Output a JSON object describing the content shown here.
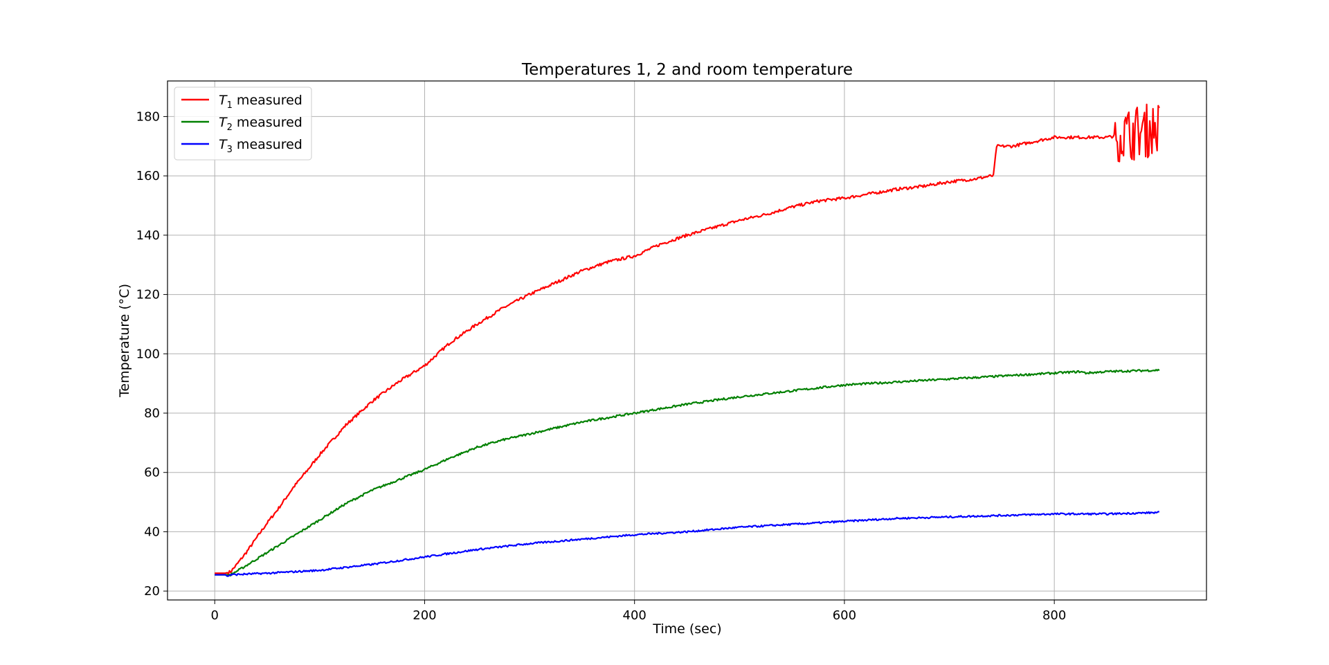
{
  "chart_data": {
    "type": "line",
    "title": "Temperatures 1, 2 and room temperature",
    "xlabel": "Time (sec)",
    "ylabel": "Temperature (°C)",
    "xlim": [
      -45,
      945
    ],
    "ylim": [
      17,
      192
    ],
    "xticks": [
      0,
      200,
      400,
      600,
      800
    ],
    "yticks": [
      20,
      40,
      60,
      80,
      100,
      120,
      140,
      160,
      180
    ],
    "grid": true,
    "legend_position": "top-left",
    "series": [
      {
        "name": "T1 measured",
        "legend_symbol": "T",
        "legend_sub": "1",
        "legend_rest": " measured",
        "color": "#ff0000",
        "noise": 0.5,
        "burst_start": 858,
        "burst_amp": 9,
        "x": [
          0,
          10,
          15,
          20,
          30,
          40,
          50,
          60,
          75,
          90,
          100,
          125,
          150,
          175,
          200,
          225,
          250,
          275,
          300,
          325,
          350,
          375,
          400,
          425,
          450,
          475,
          500,
          525,
          550,
          575,
          600,
          625,
          650,
          675,
          700,
          725,
          740,
          742,
          745,
          760,
          800,
          850,
          900
        ],
        "y": [
          26,
          26,
          26.5,
          28.5,
          33,
          38,
          43,
          47.5,
          55,
          61.5,
          66,
          76,
          84,
          90.5,
          96,
          104,
          110,
          115.5,
          120,
          124,
          128,
          131,
          133,
          137,
          140,
          142.5,
          145,
          147,
          149.5,
          151.5,
          152.5,
          154,
          155.5,
          156.5,
          158,
          159,
          160,
          160,
          170,
          170,
          173,
          173,
          176
        ]
      },
      {
        "name": "T2 measured",
        "legend_symbol": "T",
        "legend_sub": "2",
        "legend_rest": " measured",
        "color": "#008000",
        "noise": 0.35,
        "x": [
          0,
          10,
          15,
          25,
          50,
          75,
          100,
          125,
          150,
          175,
          200,
          225,
          250,
          275,
          300,
          325,
          350,
          375,
          400,
          450,
          500,
          550,
          600,
          650,
          700,
          750,
          800,
          825,
          830,
          850,
          900
        ],
        "y": [
          25.5,
          25.5,
          25.5,
          27.5,
          33,
          38.5,
          44,
          49.5,
          54,
          57.5,
          61,
          65,
          68.5,
          71,
          73,
          75,
          77,
          78.5,
          80,
          83,
          85.5,
          87.5,
          89.5,
          90.5,
          91.5,
          92.5,
          93.5,
          94,
          93.5,
          94,
          94.5
        ]
      },
      {
        "name": "T3 measured",
        "legend_symbol": "T",
        "legend_sub": "3",
        "legend_rest": " measured",
        "color": "#0000ff",
        "noise": 0.3,
        "x": [
          0,
          10,
          12,
          15,
          50,
          100,
          150,
          200,
          250,
          300,
          350,
          400,
          450,
          500,
          550,
          600,
          650,
          700,
          750,
          800,
          850,
          900
        ],
        "y": [
          25.5,
          25.5,
          25,
          25.5,
          26,
          27,
          29,
          31.5,
          34,
          36,
          37.5,
          39,
          40,
          41.5,
          42.5,
          43.5,
          44.5,
          45,
          45.5,
          46,
          46,
          46.5
        ]
      }
    ]
  }
}
